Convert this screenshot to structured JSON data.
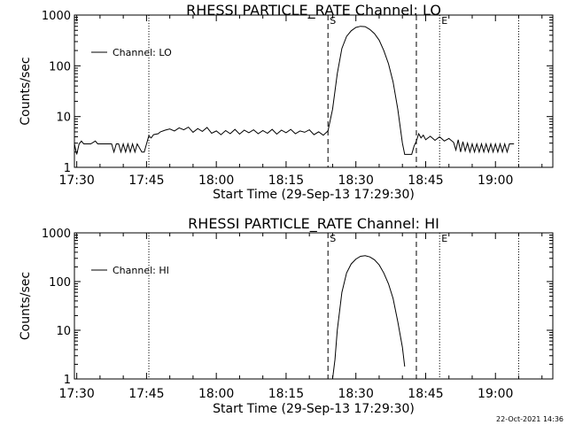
{
  "footer": {
    "timestamp": "22-Oct-2021 14:36"
  },
  "chart_data": [
    {
      "type": "line",
      "title": "RHESSI PARTICLE_RATE Channel: LO",
      "xlabel": "Start Time (29-Sep-13 17:29:30)",
      "ylabel": "Counts/sec",
      "yscale": "log",
      "ylim": [
        1,
        1000
      ],
      "xlim": [
        "17:29:30",
        "19:12:20"
      ],
      "x_ticks": [
        "17:30",
        "17:45",
        "18:00",
        "18:15",
        "18:30",
        "18:45",
        "19:00"
      ],
      "y_ticks": [
        "1",
        "10",
        "100",
        "1000"
      ],
      "legend": {
        "entries": [
          "Channel: LO"
        ],
        "position": "top-left"
      },
      "grid": false,
      "markers": [
        {
          "label": "",
          "time": "17:45:30",
          "style": "dotted"
        },
        {
          "label": "S",
          "time": "18:24:00",
          "style": "dashed"
        },
        {
          "label": "",
          "time": "18:43:00",
          "style": "dashed"
        },
        {
          "label": "E",
          "time": "18:48:00",
          "style": "dotted"
        },
        {
          "label": "",
          "time": "19:05:00",
          "style": "dotted"
        }
      ],
      "series": [
        {
          "name": "Channel: LO",
          "points": [
            [
              "17:29:30",
              2.9
            ],
            [
              "17:30:00",
              1.8
            ],
            [
              "17:30:30",
              2.9
            ],
            [
              "17:31:00",
              3.3
            ],
            [
              "17:31:30",
              2.9
            ],
            [
              "17:33:00",
              2.9
            ],
            [
              "17:34:00",
              3.3
            ],
            [
              "17:34:30",
              2.9
            ],
            [
              "17:37:30",
              2.9
            ],
            [
              "17:38:00",
              2.0
            ],
            [
              "17:38:30",
              2.9
            ],
            [
              "17:39:00",
              2.9
            ],
            [
              "17:39:30",
              2.0
            ],
            [
              "17:40:00",
              2.9
            ],
            [
              "17:40:30",
              2.0
            ],
            [
              "17:41:00",
              2.9
            ],
            [
              "17:41:30",
              2.0
            ],
            [
              "17:42:00",
              2.9
            ],
            [
              "17:42:30",
              2.0
            ],
            [
              "17:43:00",
              2.9
            ],
            [
              "17:44:00",
              2.0
            ],
            [
              "17:44:30",
              2.0
            ],
            [
              "17:45:00",
              2.9
            ],
            [
              "17:45:30",
              4.2
            ],
            [
              "17:46:00",
              3.8
            ],
            [
              "17:46:30",
              4.4
            ],
            [
              "17:47:30",
              4.6
            ],
            [
              "17:48:00",
              5.0
            ],
            [
              "17:49:00",
              5.4
            ],
            [
              "17:50:00",
              5.7
            ],
            [
              "17:51:00",
              5.2
            ],
            [
              "17:52:00",
              6.0
            ],
            [
              "17:53:00",
              5.5
            ],
            [
              "17:54:00",
              6.2
            ],
            [
              "17:55:00",
              4.9
            ],
            [
              "17:56:00",
              5.8
            ],
            [
              "17:57:00",
              5.1
            ],
            [
              "17:58:00",
              6.1
            ],
            [
              "17:59:00",
              4.7
            ],
            [
              "18:00:00",
              5.2
            ],
            [
              "18:01:00",
              4.4
            ],
            [
              "18:02:00",
              5.3
            ],
            [
              "18:03:00",
              4.6
            ],
            [
              "18:04:00",
              5.6
            ],
            [
              "18:05:00",
              4.5
            ],
            [
              "18:06:00",
              5.4
            ],
            [
              "18:07:00",
              4.8
            ],
            [
              "18:08:00",
              5.5
            ],
            [
              "18:09:00",
              4.6
            ],
            [
              "18:10:00",
              5.3
            ],
            [
              "18:11:00",
              4.7
            ],
            [
              "18:12:00",
              5.6
            ],
            [
              "18:13:00",
              4.5
            ],
            [
              "18:14:00",
              5.4
            ],
            [
              "18:15:00",
              4.8
            ],
            [
              "18:16:00",
              5.6
            ],
            [
              "18:17:00",
              4.6
            ],
            [
              "18:18:00",
              5.2
            ],
            [
              "18:19:00",
              4.9
            ],
            [
              "18:20:00",
              5.5
            ],
            [
              "18:21:00",
              4.4
            ],
            [
              "18:22:00",
              5.0
            ],
            [
              "18:23:00",
              4.3
            ],
            [
              "18:24:00",
              5.2
            ],
            [
              "18:25:00",
              14
            ],
            [
              "18:26:00",
              70
            ],
            [
              "18:27:00",
              220
            ],
            [
              "18:28:00",
              380
            ],
            [
              "18:29:00",
              490
            ],
            [
              "18:30:00",
              570
            ],
            [
              "18:31:00",
              600
            ],
            [
              "18:32:00",
              590
            ],
            [
              "18:33:00",
              520
            ],
            [
              "18:34:00",
              430
            ],
            [
              "18:35:00",
              320
            ],
            [
              "18:36:00",
              200
            ],
            [
              "18:37:00",
              110
            ],
            [
              "18:38:00",
              48
            ],
            [
              "18:39:00",
              14
            ],
            [
              "18:40:00",
              3.0
            ],
            [
              "18:40:30",
              1.8
            ],
            [
              "18:42:00",
              1.8
            ],
            [
              "18:42:30",
              2.6
            ],
            [
              "18:43:00",
              3.3
            ],
            [
              "18:43:30",
              4.6
            ],
            [
              "18:44:00",
              3.8
            ],
            [
              "18:44:30",
              4.3
            ],
            [
              "18:45:00",
              3.5
            ],
            [
              "18:46:00",
              4.1
            ],
            [
              "18:47:00",
              3.4
            ],
            [
              "18:48:00",
              4.0
            ],
            [
              "18:49:00",
              3.3
            ],
            [
              "18:50:00",
              3.7
            ],
            [
              "18:51:00",
              3.1
            ],
            [
              "18:51:30",
              2.2
            ],
            [
              "18:52:00",
              3.5
            ],
            [
              "18:52:30",
              2.0
            ],
            [
              "18:53:00",
              3.2
            ],
            [
              "18:53:30",
              2.1
            ],
            [
              "18:54:00",
              3.0
            ],
            [
              "18:54:30",
              2.0
            ],
            [
              "18:55:00",
              2.9
            ],
            [
              "18:55:30",
              2.0
            ],
            [
              "18:56:00",
              2.9
            ],
            [
              "18:56:30",
              2.0
            ],
            [
              "18:57:00",
              2.9
            ],
            [
              "18:57:30",
              2.0
            ],
            [
              "18:58:00",
              2.9
            ],
            [
              "18:58:30",
              2.0
            ],
            [
              "18:59:00",
              2.9
            ],
            [
              "18:59:30",
              2.0
            ],
            [
              "19:00:00",
              2.9
            ],
            [
              "19:00:30",
              2.0
            ],
            [
              "19:01:00",
              2.9
            ],
            [
              "19:01:30",
              2.0
            ],
            [
              "19:02:00",
              2.9
            ],
            [
              "19:02:30",
              2.0
            ],
            [
              "19:03:00",
              2.9
            ],
            [
              "19:04:00",
              2.9
            ]
          ]
        }
      ]
    },
    {
      "type": "line",
      "title": "RHESSI PARTICLE_RATE Channel: HI",
      "xlabel": "Start Time (29-Sep-13 17:29:30)",
      "ylabel": "Counts/sec",
      "yscale": "log",
      "ylim": [
        1,
        1000
      ],
      "xlim": [
        "17:29:30",
        "19:12:20"
      ],
      "x_ticks": [
        "17:30",
        "17:45",
        "18:00",
        "18:15",
        "18:30",
        "18:45",
        "19:00"
      ],
      "y_ticks": [
        "1",
        "10",
        "100",
        "1000"
      ],
      "legend": {
        "entries": [
          "Channel: HI"
        ],
        "position": "top-left"
      },
      "grid": false,
      "markers": [
        {
          "label": "",
          "time": "17:45:30",
          "style": "dotted"
        },
        {
          "label": "S",
          "time": "18:24:00",
          "style": "dashed"
        },
        {
          "label": "",
          "time": "18:43:00",
          "style": "dashed"
        },
        {
          "label": "E",
          "time": "18:48:00",
          "style": "dotted"
        },
        {
          "label": "",
          "time": "19:05:00",
          "style": "dotted"
        }
      ],
      "series": [
        {
          "name": "Channel: HI",
          "points": [
            [
              "18:25:00",
              1.0
            ],
            [
              "18:25:30",
              2.5
            ],
            [
              "18:26:00",
              10
            ],
            [
              "18:27:00",
              60
            ],
            [
              "18:28:00",
              150
            ],
            [
              "18:29:00",
              230
            ],
            [
              "18:30:00",
              290
            ],
            [
              "18:31:00",
              330
            ],
            [
              "18:32:00",
              340
            ],
            [
              "18:33:00",
              320
            ],
            [
              "18:34:00",
              280
            ],
            [
              "18:35:00",
              220
            ],
            [
              "18:36:00",
              150
            ],
            [
              "18:37:00",
              90
            ],
            [
              "18:38:00",
              45
            ],
            [
              "18:39:00",
              15
            ],
            [
              "18:40:00",
              4.5
            ],
            [
              "18:40:30",
              1.8
            ]
          ]
        }
      ]
    }
  ]
}
